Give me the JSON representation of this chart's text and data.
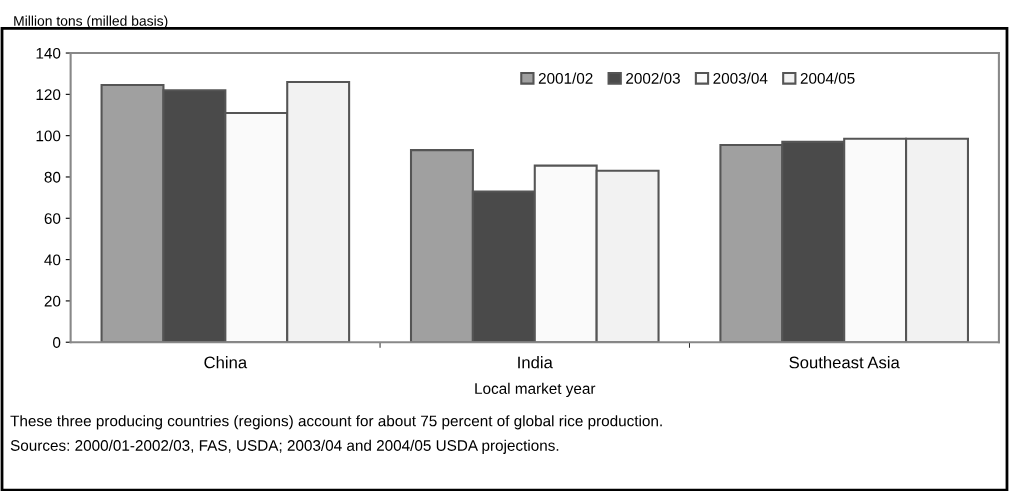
{
  "chart_data": {
    "type": "bar",
    "ylabel": "Million tons (milled basis)",
    "xlabel": "Local market year",
    "categories": [
      "China",
      "India",
      "Southeast Asia"
    ],
    "series": [
      {
        "name": "2001/02",
        "color": "#a0a0a0",
        "values": [
          124.5,
          93,
          95.5
        ]
      },
      {
        "name": "2002/03",
        "color": "#4a4a4a",
        "values": [
          122,
          73,
          97
        ]
      },
      {
        "name": "2003/04",
        "color": "#fafafa",
        "values": [
          111,
          85.5,
          98.5
        ]
      },
      {
        "name": "2004/05",
        "color": "#f2f2f2",
        "values": [
          126,
          83,
          98.5
        ]
      }
    ],
    "ylim": [
      0,
      140
    ],
    "yticks": [
      0,
      20,
      40,
      60,
      80,
      100,
      120,
      140
    ],
    "grid": false,
    "legend": "top right",
    "annotations": [
      "These three producing countries (regions) account for about 75 percent of global rice production.",
      "Sources: 2000/01-2002/03, FAS, USDA; 2003/04 and 2004/05 USDA projections."
    ]
  }
}
